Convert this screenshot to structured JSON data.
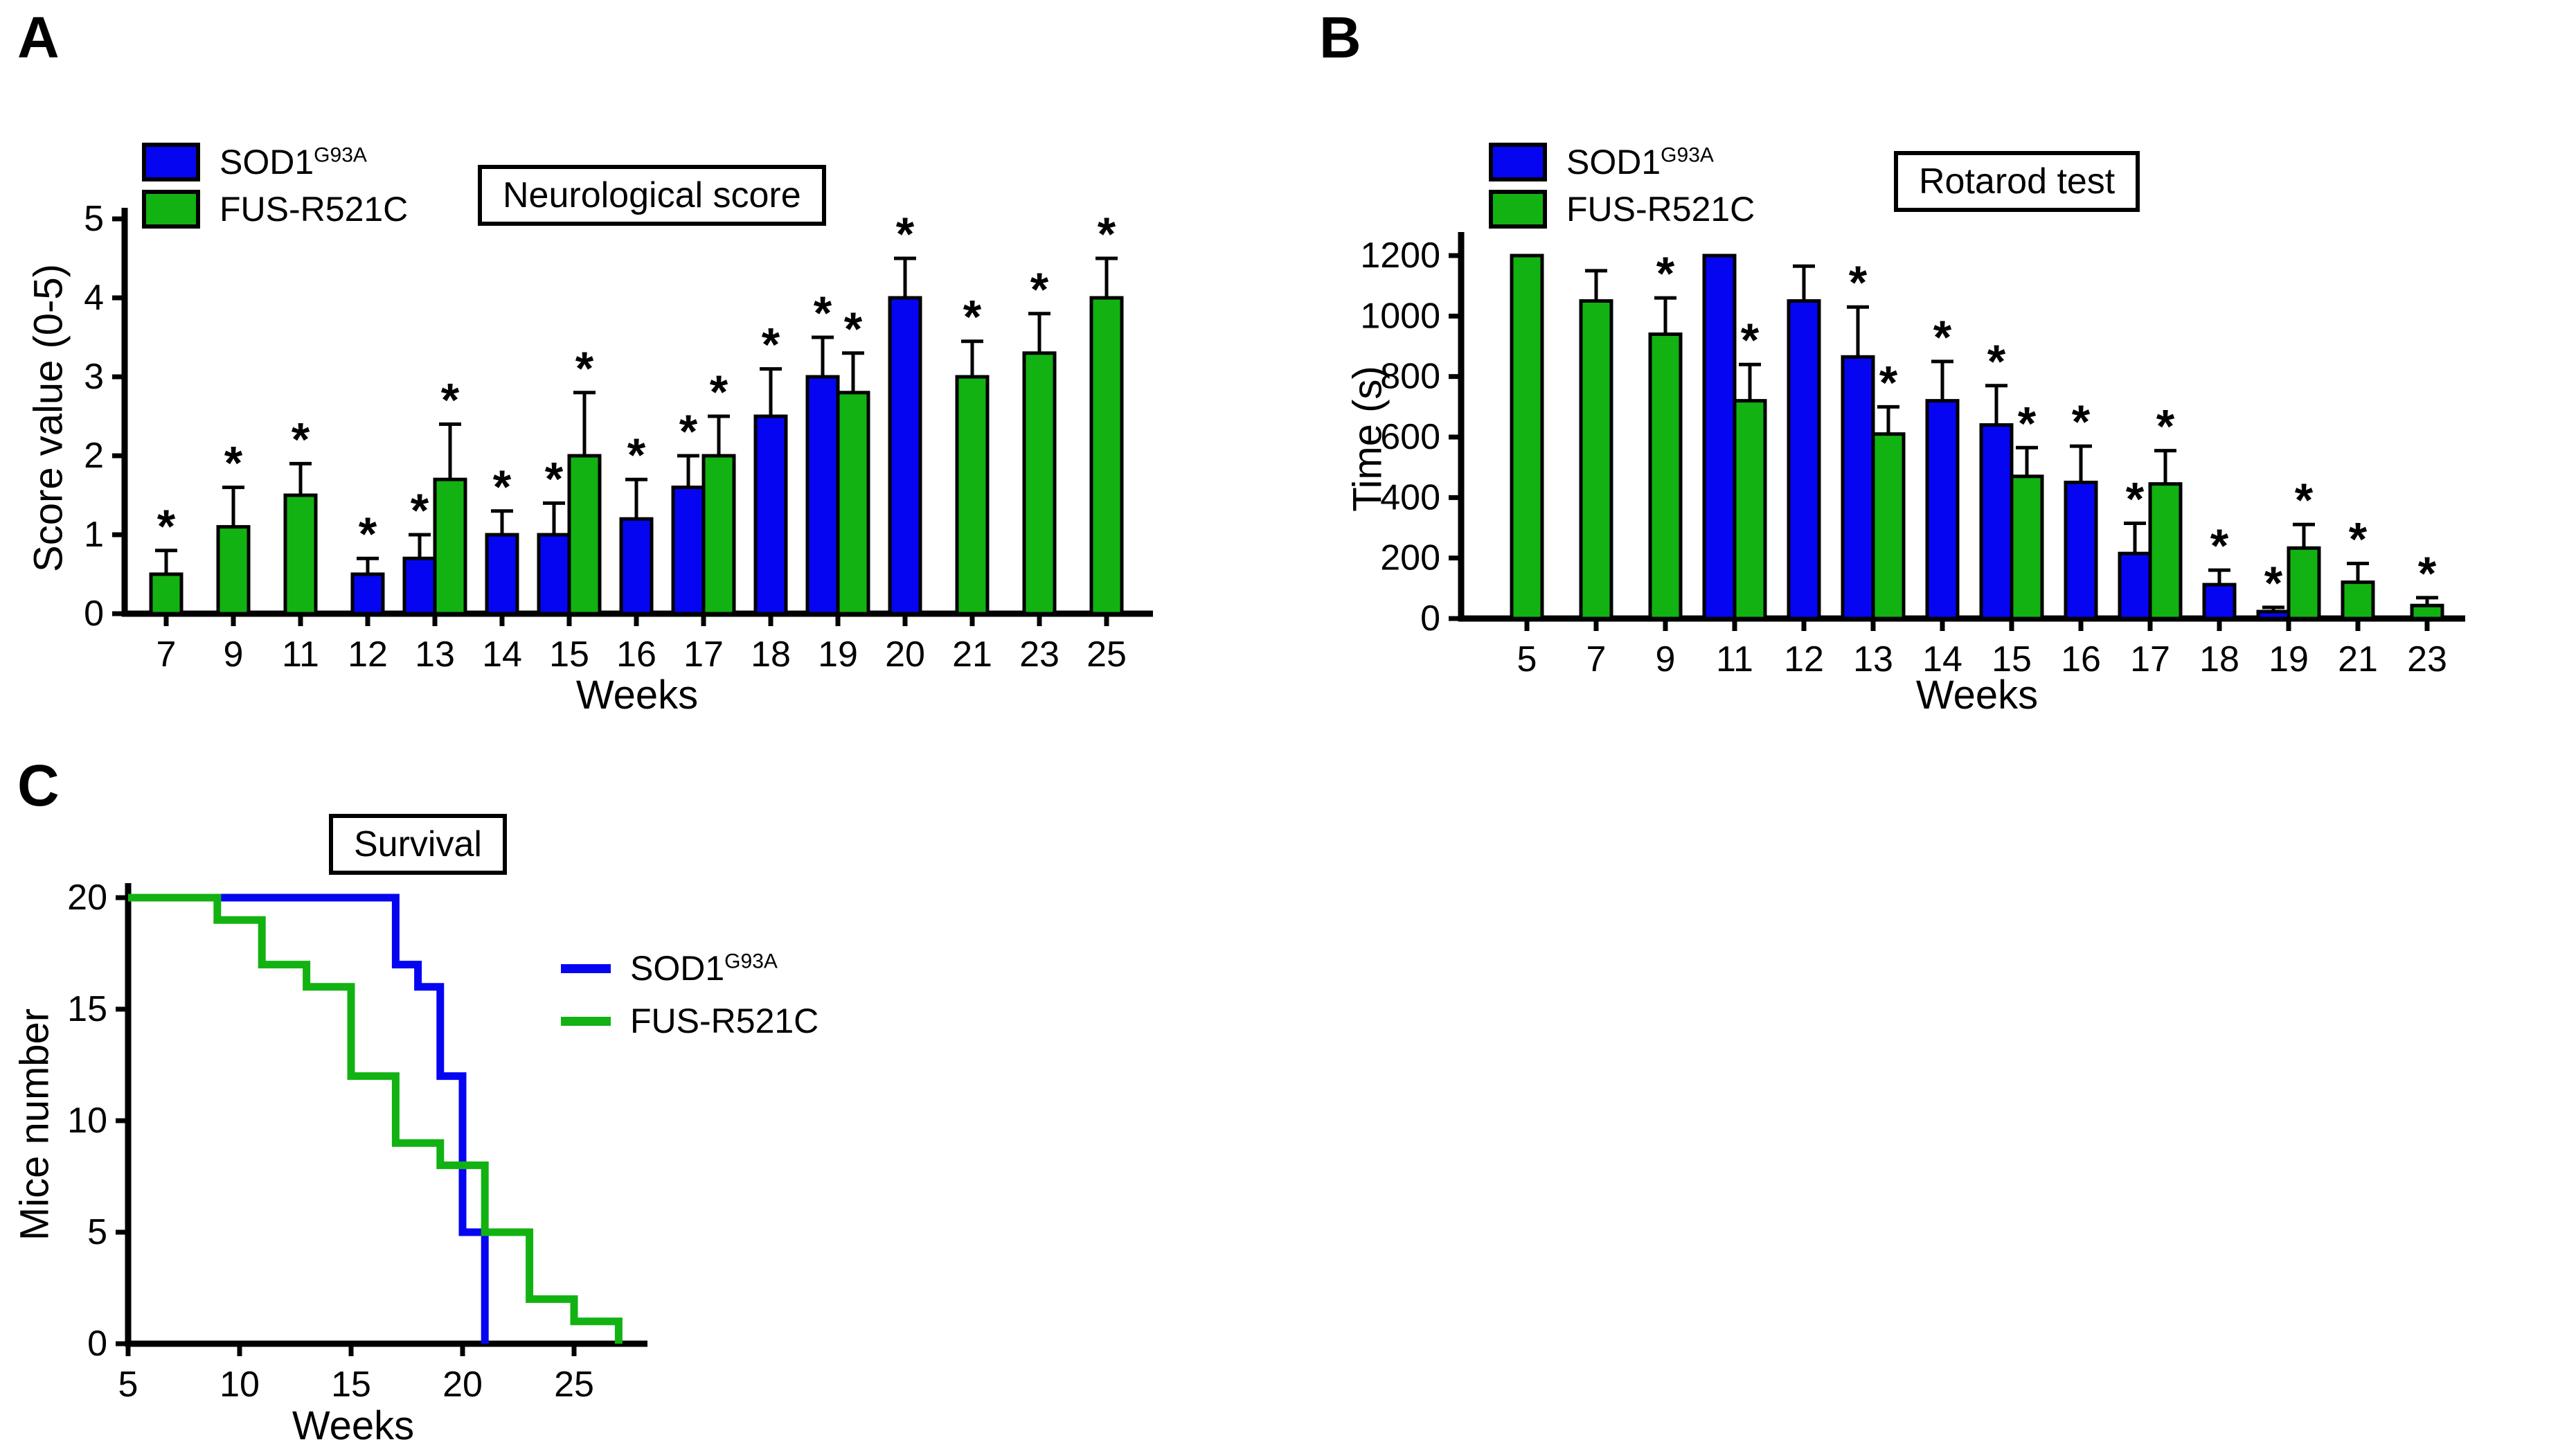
{
  "background": "#FFFFFF",
  "colors": {
    "sod1": "#0505F2",
    "fus": "#12B212",
    "axis": "#000000"
  },
  "legend": {
    "sod1": {
      "label": "SOD1",
      "sup": "G93A"
    },
    "fus": {
      "label": "FUS-R521C",
      "sup": ""
    }
  },
  "panels": {
    "a": {
      "letter": "A",
      "title": "Neurological score",
      "xlabel": "Weeks",
      "ylabel": "Score value (0-5)"
    },
    "b": {
      "letter": "B",
      "title": "Rotarod test",
      "xlabel": "Weeks",
      "ylabel": "Time (s)"
    },
    "c": {
      "letter": "C",
      "title": "Survival",
      "xlabel": "Weeks",
      "ylabel": "Mice number"
    }
  },
  "chart_data": [
    {
      "id": "neuro",
      "type": "bar",
      "title": "Neurological score",
      "xlabel": "Weeks",
      "ylabel": "Score value (0-5)",
      "ylim": [
        0,
        5
      ],
      "yticks": [
        0,
        1,
        2,
        3,
        4,
        5
      ],
      "categories": [
        7,
        9,
        11,
        12,
        13,
        14,
        15,
        16,
        17,
        18,
        19,
        20,
        21,
        23,
        25
      ],
      "series": [
        {
          "name": "SOD1-G93A",
          "color": "#0505F2",
          "values": [
            null,
            null,
            null,
            0.5,
            0.7,
            1.0,
            1.0,
            1.2,
            1.6,
            2.5,
            3.0,
            4.0,
            null,
            null,
            null
          ],
          "errors": [
            null,
            null,
            null,
            0.2,
            0.3,
            0.3,
            0.4,
            0.5,
            0.4,
            0.6,
            0.5,
            0.5,
            null,
            null,
            null
          ],
          "sig": [
            false,
            false,
            false,
            true,
            true,
            true,
            true,
            true,
            true,
            true,
            true,
            true,
            false,
            false,
            false
          ]
        },
        {
          "name": "FUS-R521C",
          "color": "#12B212",
          "values": [
            0.5,
            1.1,
            1.5,
            null,
            1.7,
            null,
            2.0,
            null,
            2.0,
            null,
            2.8,
            null,
            3.0,
            3.3,
            4.0
          ],
          "errors": [
            0.3,
            0.5,
            0.4,
            null,
            0.7,
            null,
            0.8,
            null,
            0.5,
            null,
            0.5,
            null,
            0.45,
            0.5,
            0.5
          ],
          "sig": [
            true,
            true,
            true,
            false,
            true,
            false,
            true,
            false,
            true,
            false,
            true,
            false,
            true,
            true,
            true
          ]
        }
      ]
    },
    {
      "id": "rotarod",
      "type": "bar",
      "title": "Rotarod test",
      "xlabel": "Weeks",
      "ylabel": "Time (s)",
      "ylim": [
        0,
        1200
      ],
      "yticks": [
        0,
        200,
        400,
        600,
        800,
        1000,
        1200
      ],
      "categories": [
        5,
        7,
        9,
        11,
        12,
        13,
        14,
        15,
        16,
        17,
        18,
        19,
        21,
        23
      ],
      "series": [
        {
          "name": "SOD1-G93A",
          "color": "#0505F2",
          "values": [
            null,
            null,
            null,
            1200,
            1050,
            865,
            720,
            640,
            450,
            215,
            112,
            23,
            null,
            null
          ],
          "errors": [
            null,
            null,
            null,
            0,
            115,
            165,
            130,
            130,
            120,
            100,
            48,
            14,
            null,
            null
          ],
          "sig": [
            false,
            false,
            false,
            false,
            false,
            true,
            true,
            true,
            true,
            true,
            true,
            true,
            false,
            false
          ]
        },
        {
          "name": "FUS-R521C",
          "color": "#12B212",
          "values": [
            1200,
            1050,
            940,
            720,
            null,
            610,
            null,
            470,
            null,
            445,
            null,
            233,
            120,
            43
          ],
          "errors": [
            0,
            100,
            120,
            120,
            null,
            90,
            null,
            95,
            null,
            110,
            null,
            78,
            62,
            26
          ],
          "sig": [
            false,
            false,
            true,
            true,
            false,
            true,
            false,
            true,
            false,
            true,
            false,
            true,
            true,
            true
          ]
        }
      ]
    },
    {
      "id": "survival",
      "type": "line-step",
      "title": "Survival",
      "xlabel": "Weeks",
      "ylabel": "Mice number",
      "xlim": [
        5,
        28
      ],
      "ylim": [
        0,
        22
      ],
      "xticks": [
        5,
        10,
        15,
        20,
        25
      ],
      "yticks": [
        0,
        5,
        10,
        15,
        20
      ],
      "series": [
        {
          "name": "SOD1-G93A",
          "color": "#0505F2",
          "points": [
            [
              5,
              20
            ],
            [
              17,
              20
            ],
            [
              17,
              17
            ],
            [
              18,
              17
            ],
            [
              18,
              16
            ],
            [
              19,
              16
            ],
            [
              19,
              12
            ],
            [
              20,
              12
            ],
            [
              20,
              5
            ],
            [
              21,
              5
            ],
            [
              21,
              0
            ]
          ]
        },
        {
          "name": "FUS-R521C",
          "color": "#12B212",
          "points": [
            [
              5,
              20
            ],
            [
              9,
              20
            ],
            [
              9,
              19
            ],
            [
              11,
              19
            ],
            [
              11,
              17
            ],
            [
              13,
              17
            ],
            [
              13,
              16
            ],
            [
              15,
              16
            ],
            [
              15,
              12
            ],
            [
              17,
              12
            ],
            [
              17,
              9
            ],
            [
              19,
              9
            ],
            [
              19,
              8
            ],
            [
              21,
              8
            ],
            [
              21,
              5
            ],
            [
              23,
              5
            ],
            [
              23,
              2
            ],
            [
              25,
              2
            ],
            [
              25,
              1
            ],
            [
              27,
              1
            ],
            [
              27,
              0
            ]
          ]
        }
      ]
    }
  ]
}
